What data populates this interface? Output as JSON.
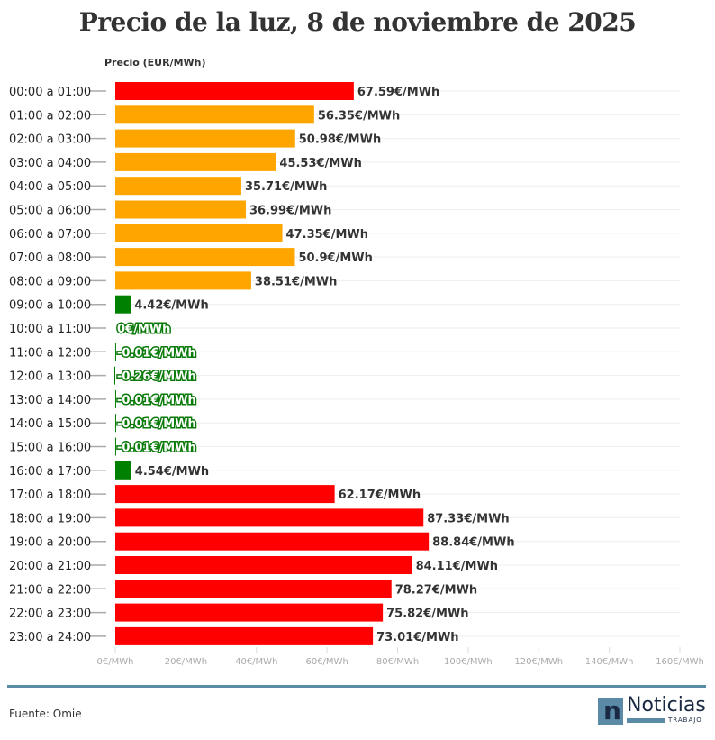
{
  "chart_data": {
    "type": "bar",
    "orientation": "horizontal",
    "title": "Precio de la luz, 8 de noviembre de 2025",
    "ylabel": "Precio (EUR/MWh)",
    "xlim": [
      0,
      160
    ],
    "xticks": [
      "0€/MWh",
      "20€/MWh",
      "40€/MWh",
      "60€/MWh",
      "80€/MWh",
      "100€/MWh",
      "120€/MWh",
      "140€/MWh",
      "160€/MWh"
    ],
    "grid": true,
    "categories": [
      "00:00 a 01:00",
      "01:00 a 02:00",
      "02:00 a 03:00",
      "03:00 a 04:00",
      "04:00 a 05:00",
      "05:00 a 06:00",
      "06:00 a 07:00",
      "07:00 a 08:00",
      "08:00 a 09:00",
      "09:00 a 10:00",
      "10:00 a 11:00",
      "11:00 a 12:00",
      "12:00 a 13:00",
      "13:00 a 14:00",
      "14:00 a 15:00",
      "15:00 a 16:00",
      "16:00 a 17:00",
      "17:00 a 18:00",
      "18:00 a 19:00",
      "19:00 a 20:00",
      "20:00 a 21:00",
      "21:00 a 22:00",
      "22:00 a 23:00",
      "23:00 a 24:00"
    ],
    "values": [
      67.59,
      56.35,
      50.98,
      45.53,
      35.71,
      36.99,
      47.35,
      50.9,
      38.51,
      4.42,
      0,
      -0.01,
      -0.26,
      -0.01,
      -0.01,
      -0.01,
      4.54,
      62.17,
      87.33,
      88.84,
      84.11,
      78.27,
      75.82,
      73.01
    ],
    "labels": [
      "67.59€/MWh",
      "56.35€/MWh",
      "50.98€/MWh",
      "45.53€/MWh",
      "35.71€/MWh",
      "36.99€/MWh",
      "47.35€/MWh",
      "50.9€/MWh",
      "38.51€/MWh",
      "4.42€/MWh",
      "0€/MWh",
      "-0.01€/MWh",
      "-0.26€/MWh",
      "-0.01€/MWh",
      "-0.01€/MWh",
      "-0.01€/MWh",
      "4.54€/MWh",
      "62.17€/MWh",
      "87.33€/MWh",
      "88.84€/MWh",
      "84.11€/MWh",
      "78.27€/MWh",
      "75.82€/MWh",
      "73.01€/MWh"
    ],
    "bar_colors": [
      "red",
      "orange",
      "orange",
      "orange",
      "orange",
      "orange",
      "orange",
      "orange",
      "orange",
      "green",
      "green",
      "green",
      "green",
      "green",
      "green",
      "green",
      "green",
      "red",
      "red",
      "red",
      "red",
      "red",
      "red",
      "red"
    ],
    "colors": {
      "red": "#ff0000",
      "orange": "#ffa500",
      "green": "#008000"
    }
  },
  "footer": {
    "source": "Fuente: Omie",
    "logo_name": "Noticias",
    "logo_sub": "TRABAJO",
    "logo_mark": "n"
  }
}
